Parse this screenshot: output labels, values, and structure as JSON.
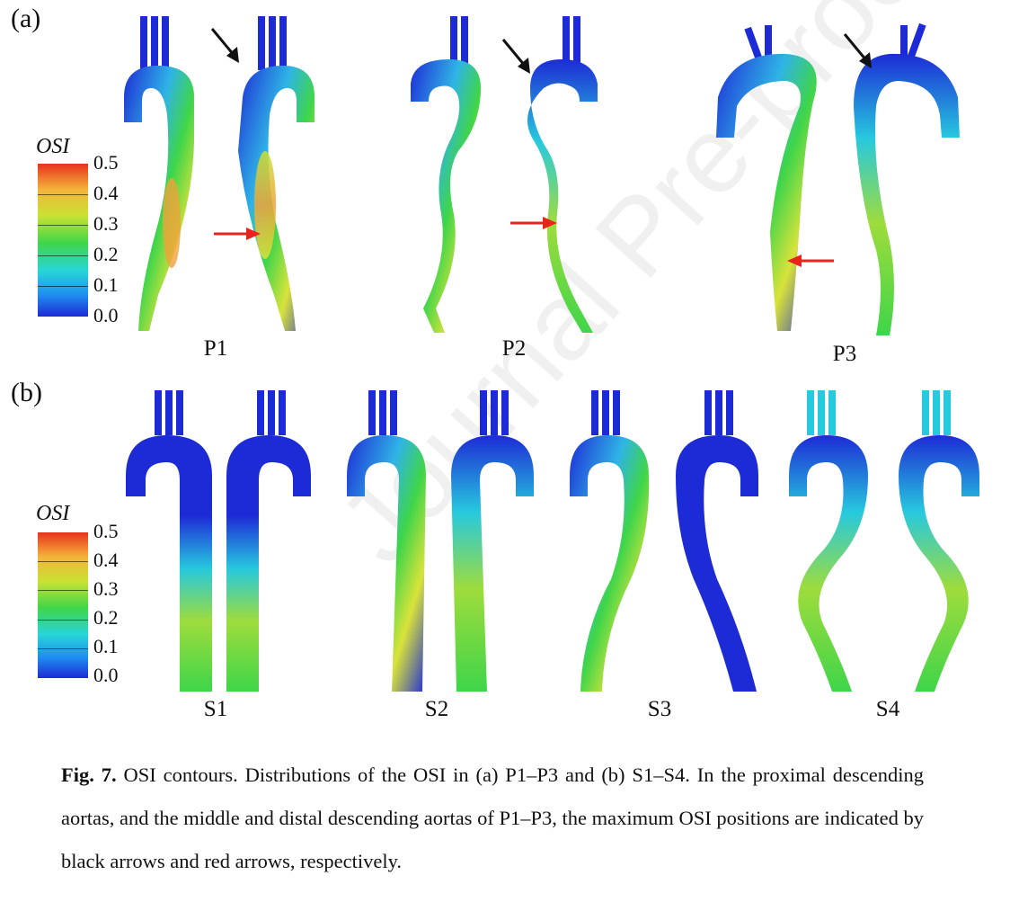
{
  "panel_a": {
    "letter": "(a)",
    "colorbar": {
      "title": "OSI",
      "ticks": [
        "0.5",
        "0.4",
        "0.3",
        "0.2",
        "0.1",
        "0.0"
      ]
    },
    "labels": [
      "P1",
      "P2",
      "P3"
    ]
  },
  "panel_b": {
    "letter": "(b)",
    "colorbar": {
      "title": "OSI",
      "ticks": [
        "0.5",
        "0.4",
        "0.3",
        "0.2",
        "0.1",
        "0.0"
      ]
    },
    "labels": [
      "S1",
      "S2",
      "S3",
      "S4"
    ]
  },
  "colors": {
    "low": "#1d2bd6",
    "mid": "#3fd54a",
    "high": "#e8321c",
    "arrow_black": "#111111",
    "arrow_red": "#e8241c"
  },
  "caption": {
    "fig_label": "Fig. 7.",
    "text": " OSI contours. Distributions of the OSI in (a) P1–P3 and (b) S1–S4. In the proximal descending aortas, and the middle and distal descending aortas of P1–P3, the maximum OSI positions are indicated by black arrows and red arrows, respectively."
  },
  "watermark": "Journal Pre-proof"
}
